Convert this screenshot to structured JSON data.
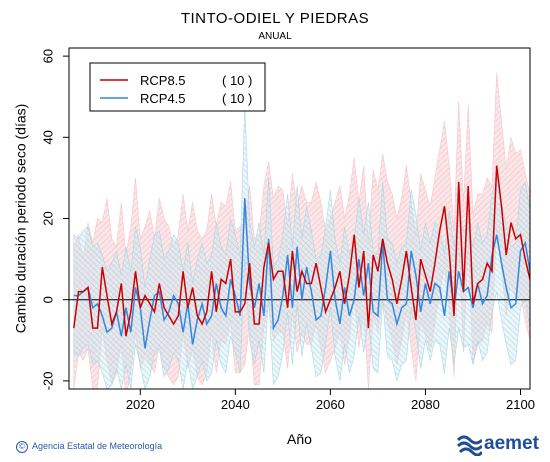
{
  "chart_data": {
    "type": "line",
    "title": "TINTO-ODIEL Y PIEDRAS",
    "subtitle": "ANUAL",
    "xlabel": "Año",
    "ylabel": "Cambio duración periodo seco (días)",
    "xlim": [
      2005,
      2102
    ],
    "ylim": [
      -22,
      62
    ],
    "x_ticks": [
      2020,
      2040,
      2060,
      2080,
      2100
    ],
    "y_ticks": [
      -20,
      0,
      20,
      40,
      60
    ],
    "zero_line": 0,
    "legend_position": "top-left",
    "x_start": 2006,
    "series": [
      {
        "name": "RCP8.5",
        "count_label": "( 10 )",
        "color": "#cc0000",
        "band_color": "#f5c6cc",
        "values": [
          -7,
          2,
          2,
          3,
          -7,
          -7,
          8,
          1,
          -6,
          -3,
          4,
          -9,
          -3,
          7,
          -2,
          1,
          -1,
          -3,
          4,
          -2,
          -4,
          -6,
          -4,
          7,
          -2,
          3,
          -4,
          -6,
          -3,
          7,
          -3,
          5,
          4,
          10,
          -3,
          -3,
          -1,
          9,
          -6,
          -6,
          8,
          14,
          5,
          7,
          7,
          -2,
          12,
          2,
          7,
          4,
          4,
          9,
          3,
          -3,
          0,
          3,
          7,
          -1,
          6,
          16,
          3,
          12,
          -7,
          11,
          7,
          15,
          9,
          5,
          -1,
          5,
          12,
          3,
          -5,
          10,
          6,
          2,
          9,
          17,
          23,
          12,
          -4,
          29,
          2,
          28,
          -1,
          4,
          5,
          9,
          7,
          33,
          23,
          11,
          19,
          15,
          16,
          10,
          5,
          12,
          9,
          3,
          19,
          16
        ],
        "upper": [
          13,
          16,
          10,
          19,
          14,
          20,
          19,
          25,
          15,
          13,
          24,
          11,
          18,
          30,
          15,
          18,
          22,
          15,
          25,
          20,
          18,
          13,
          16,
          26,
          17,
          24,
          17,
          15,
          17,
          26,
          18,
          24,
          23,
          29,
          17,
          18,
          19,
          28,
          15,
          16,
          28,
          34,
          25,
          28,
          27,
          18,
          31,
          23,
          28,
          24,
          24,
          29,
          24,
          17,
          20,
          24,
          28,
          20,
          26,
          35,
          24,
          33,
          14,
          32,
          27,
          36,
          29,
          26,
          20,
          25,
          33,
          24,
          16,
          31,
          27,
          23,
          30,
          37,
          44,
          33,
          17,
          49,
          24,
          48,
          21,
          26,
          26,
          30,
          28,
          56,
          44,
          32,
          40,
          36,
          37,
          31,
          26,
          33,
          30,
          24,
          42,
          44
        ],
        "lower": [
          -22,
          -13,
          -15,
          -12,
          -22,
          -22,
          -7,
          -15,
          -21,
          -18,
          -11,
          -24,
          -18,
          -8,
          -17,
          -14,
          -16,
          -18,
          -11,
          -17,
          -19,
          -21,
          -19,
          -8,
          -17,
          -12,
          -19,
          -21,
          -18,
          -8,
          -18,
          -10,
          -11,
          -5,
          -18,
          -18,
          -16,
          -6,
          -21,
          -21,
          -7,
          -1,
          -10,
          -8,
          -8,
          -17,
          -3,
          -13,
          -8,
          -11,
          -11,
          -6,
          -12,
          -18,
          -15,
          -12,
          -8,
          -16,
          -9,
          1,
          -12,
          -3,
          -22,
          -4,
          -8,
          0,
          -6,
          -10,
          -16,
          -10,
          -3,
          -12,
          -20,
          -5,
          -9,
          -13,
          -6,
          2,
          8,
          -3,
          -19,
          14,
          -13,
          13,
          -16,
          -11,
          -10,
          -6,
          -8,
          18,
          8,
          -4,
          4,
          0,
          1,
          -5,
          -10,
          -3,
          -6,
          -12,
          4,
          1
        ]
      },
      {
        "name": "RCP4.5",
        "count_label": "( 10 )",
        "color": "#3388dd",
        "band_color": "#a9d8e6",
        "values": [
          1,
          1,
          2,
          3,
          -2,
          -1,
          -4,
          -8,
          -7,
          -3,
          -9,
          -2,
          -8,
          3,
          -2,
          -12,
          -5,
          1,
          2,
          -5,
          -3,
          1,
          -1,
          -8,
          -1,
          -11,
          -5,
          -1,
          -6,
          -4,
          4,
          -2,
          -4,
          5,
          1,
          -4,
          25,
          4,
          -2,
          4,
          -4,
          15,
          -7,
          -5,
          1,
          11,
          -2,
          13,
          0,
          8,
          2,
          -5,
          -4,
          3,
          12,
          0,
          -6,
          3,
          -4,
          0,
          10,
          1,
          9,
          -3,
          -4,
          14,
          0,
          -1,
          -6,
          -2,
          -1,
          12,
          6,
          -3,
          4,
          -1,
          4,
          3,
          -4,
          7,
          -2,
          7,
          2,
          3,
          -2,
          4,
          -1,
          1,
          11,
          16,
          9,
          3,
          -2,
          -1,
          12,
          14,
          7,
          9,
          3,
          4,
          -1
        ],
        "upper": [
          16,
          15,
          17,
          18,
          13,
          14,
          11,
          7,
          9,
          12,
          6,
          13,
          7,
          18,
          13,
          3,
          10,
          16,
          17,
          10,
          12,
          16,
          14,
          7,
          14,
          4,
          10,
          14,
          9,
          11,
          19,
          13,
          11,
          20,
          16,
          11,
          48,
          19,
          13,
          19,
          11,
          30,
          8,
          10,
          16,
          26,
          13,
          28,
          15,
          23,
          17,
          10,
          11,
          18,
          27,
          15,
          9,
          18,
          11,
          15,
          25,
          16,
          24,
          12,
          11,
          29,
          15,
          14,
          9,
          13,
          14,
          27,
          21,
          12,
          19,
          14,
          19,
          18,
          11,
          22,
          13,
          22,
          17,
          18,
          13,
          19,
          14,
          16,
          26,
          31,
          24,
          18,
          13,
          14,
          27,
          29,
          22,
          24,
          18,
          19,
          14
        ],
        "lower": [
          -13,
          -14,
          -12,
          -11,
          -16,
          -15,
          -18,
          -22,
          -21,
          -17,
          -22,
          -16,
          -22,
          -11,
          -16,
          -22,
          -19,
          -13,
          -12,
          -19,
          -17,
          -13,
          -15,
          -22,
          -15,
          -22,
          -19,
          -15,
          -20,
          -18,
          -10,
          -16,
          -18,
          -9,
          -13,
          -18,
          11,
          -10,
          -16,
          -10,
          -18,
          1,
          -21,
          -19,
          -13,
          -3,
          -16,
          -1,
          -14,
          -6,
          -12,
          -19,
          -18,
          -11,
          -2,
          -14,
          -20,
          -11,
          -18,
          -14,
          -4,
          -13,
          -5,
          -17,
          -18,
          0,
          -14,
          -15,
          -20,
          -16,
          -15,
          -2,
          -8,
          -17,
          -10,
          -15,
          -10,
          -11,
          -18,
          -7,
          -16,
          -7,
          -12,
          -11,
          -16,
          -10,
          -15,
          -13,
          -3,
          2,
          -5,
          -11,
          -16,
          -15,
          -2,
          0,
          -7,
          -5,
          -11,
          -10,
          -15
        ]
      }
    ]
  },
  "footer": {
    "credit": "Agencia Estatal de Meteorología",
    "credit_symbol": "©",
    "logo_text": "aemet"
  }
}
